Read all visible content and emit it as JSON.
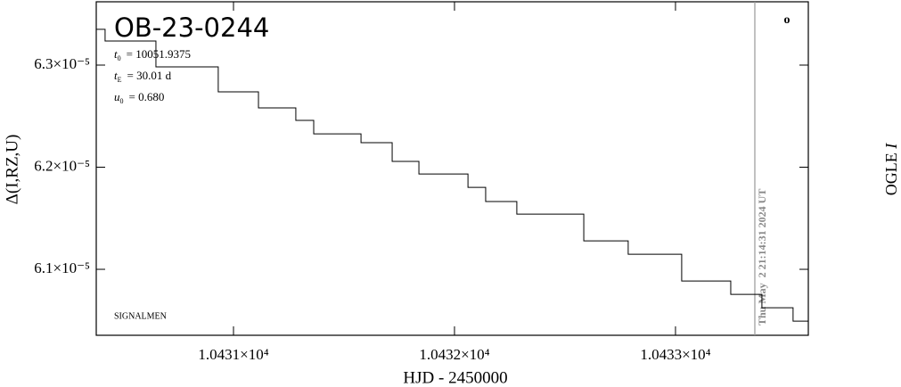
{
  "chart_data": {
    "type": "line",
    "title": "OB-23-0244",
    "params": [
      {
        "symbol": "t",
        "subscript": "0",
        "value": "= 10051.9375"
      },
      {
        "symbol": "t",
        "subscript": "E",
        "value": "= 30.01 d"
      },
      {
        "symbol": "u",
        "subscript": "0",
        "value": "= 0.680"
      }
    ],
    "credit": "SIGNALMEN",
    "survey": "OGLE",
    "band": "I",
    "marker_symbol": "o",
    "timestamp": "Thu May  2 21:14:31 2024 UT",
    "x_label": "HJD - 2450000",
    "y_label": "Δ(I,RZ,U)",
    "now_hjd": 10433.359,
    "color": "#000000",
    "x": [
      10430.379,
      10430.419,
      10430.419,
      10430.649,
      10430.649,
      10430.931,
      10430.931,
      10431.113,
      10431.113,
      10431.282,
      10431.282,
      10431.363,
      10431.363,
      10431.577,
      10431.577,
      10431.718,
      10431.718,
      10431.839,
      10431.839,
      10432.061,
      10432.061,
      10432.141,
      10432.141,
      10432.282,
      10432.282,
      10432.585,
      10432.585,
      10432.786,
      10432.786,
      10433.028,
      10433.028,
      10433.25,
      10433.25,
      10433.391,
      10433.391,
      10433.532,
      10433.532,
      10433.601
    ],
    "values": [
      6.335e-05,
      6.335e-05,
      6.3236e-05,
      6.3236e-05,
      6.2983e-05,
      6.2983e-05,
      6.2738e-05,
      6.2738e-05,
      6.2581e-05,
      6.2581e-05,
      6.2458e-05,
      6.2458e-05,
      6.2327e-05,
      6.2327e-05,
      6.224e-05,
      6.224e-05,
      6.2057e-05,
      6.2057e-05,
      6.1934e-05,
      6.1934e-05,
      6.1803e-05,
      6.1803e-05,
      6.1664e-05,
      6.1664e-05,
      6.1541e-05,
      6.1541e-05,
      6.1279e-05,
      6.1279e-05,
      6.1148e-05,
      6.1148e-05,
      6.0886e-05,
      6.0886e-05,
      6.0755e-05,
      6.0755e-05,
      6.0624e-05,
      6.0624e-05,
      6.0493e-05,
      6.0493e-05
    ],
    "xlim": [
      10430.379,
      10433.601
    ],
    "ylim": [
      6.0354e-05,
      6.362e-05
    ],
    "xticks": [
      {
        "value": 10431,
        "label": "1.0431×10⁴"
      },
      {
        "value": 10432,
        "label": "1.0432×10⁴"
      },
      {
        "value": 10433,
        "label": "1.0433×10⁴"
      }
    ],
    "yticks": [
      {
        "value": 6.1e-05,
        "label": "6.1×10⁻⁵"
      },
      {
        "value": 6.2e-05,
        "label": "6.2×10⁻⁵"
      },
      {
        "value": 6.3e-05,
        "label": "6.3×10⁻⁵"
      }
    ]
  }
}
